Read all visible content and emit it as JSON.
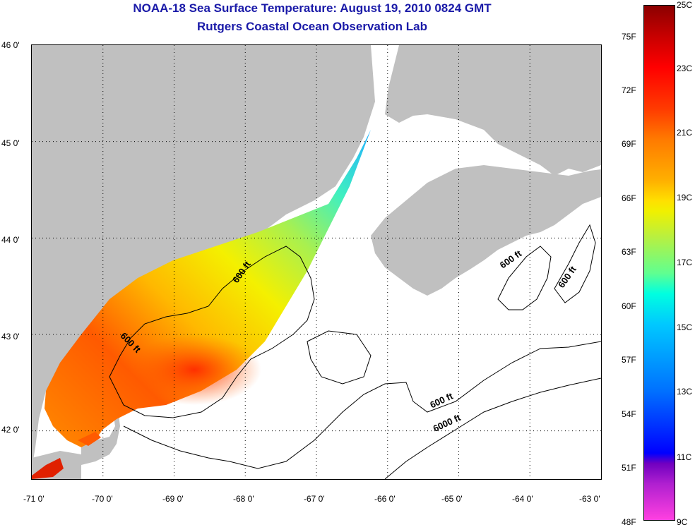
{
  "header": {
    "title": "NOAA-18 Sea Surface Temperature:  August 19, 2010 0824 GMT",
    "subtitle": "Rutgers Coastal Ocean Observation Lab"
  },
  "axes": {
    "lat_labels": [
      "46 0'",
      "45 0'",
      "44 0'",
      "43 0'",
      "42 0'"
    ],
    "lon_labels": [
      "-71 0'",
      "-70 0'",
      "-69 0'",
      "-68 0'",
      "-67 0'",
      "-66 0'",
      "-65 0'",
      "-64 0'",
      "-63 0'"
    ],
    "lat_range": [
      41.5,
      46.0
    ],
    "lon_range": [
      -71.0,
      -63.0
    ],
    "grid": "dotted"
  },
  "contours": {
    "labels": [
      "600 ft",
      "600 ft",
      "600 ft",
      "600 ft",
      "600 ft",
      "6000 ft"
    ]
  },
  "colorbar": {
    "fahrenheit_labels": [
      "75F",
      "72F",
      "69F",
      "66F",
      "63F",
      "60F",
      "57F",
      "54F",
      "51F",
      "48F"
    ],
    "celsius_labels": [
      "25C",
      "23C",
      "21C",
      "19C",
      "17C",
      "15C",
      "13C",
      "11C",
      "9C"
    ],
    "range_c": [
      9,
      25
    ],
    "range_f": [
      48,
      77
    ]
  },
  "colors": {
    "land": "#c0c0c0",
    "title": "#1a1aa8",
    "ocean_no_data": "#ffffff"
  }
}
